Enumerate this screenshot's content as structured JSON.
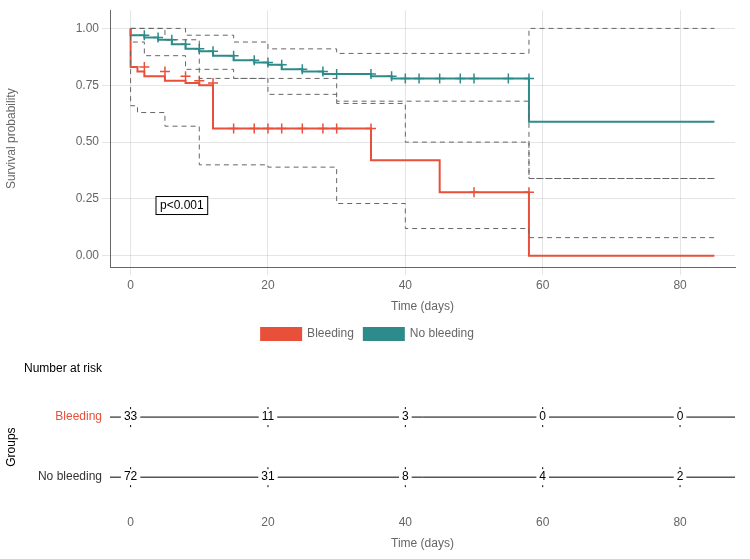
{
  "chart_data": {
    "type": "step",
    "xlabel": "Time (days)",
    "ylabel": "Survival probability",
    "xlim": [
      -3,
      88
    ],
    "xticks": [
      0,
      20,
      40,
      60,
      80
    ],
    "ylim": [
      -0.05,
      1.08
    ],
    "yticks": [
      {
        "value": 0,
        "label": "0.00"
      },
      0.25,
      {
        "value": 0.5,
        "label": "0.50"
      },
      0.75,
      {
        "value": 1,
        "label": "1.00"
      }
    ],
    "grid": true,
    "legend": "bottom",
    "series": [
      {
        "name": "Bleeding",
        "color": "#E8503A",
        "line_style": "solid",
        "marker": "+",
        "x": [
          0,
          1,
          2,
          5,
          8,
          10,
          12,
          15,
          18,
          20,
          22,
          25,
          28,
          30,
          35,
          40,
          45,
          50,
          55,
          58,
          60,
          85
        ],
        "values": [
          1.0,
          0.83,
          0.81,
          0.79,
          0.77,
          0.76,
          0.75,
          0.56,
          0.56,
          0.56,
          0.56,
          0.56,
          0.56,
          0.56,
          0.56,
          0.42,
          0.42,
          0.28,
          0.28,
          0.28,
          0.0,
          0.0
        ],
        "censors": {
          "x": [
            2,
            5,
            8,
            10,
            12,
            15,
            18,
            20,
            22,
            25,
            28,
            30,
            35,
            50,
            58
          ],
          "values": [
            0.83,
            0.81,
            0.79,
            0.77,
            0.76,
            0.56,
            0.56,
            0.56,
            0.56,
            0.56,
            0.56,
            0.56,
            0.56,
            0.28,
            0.28
          ]
        }
      },
      {
        "name": "No bleeding",
        "color": "#2E8B8B",
        "line_style": "solid",
        "marker": "+",
        "x": [
          0,
          2,
          4,
          6,
          8,
          10,
          12,
          15,
          18,
          20,
          22,
          25,
          28,
          30,
          35,
          38,
          40,
          42,
          45,
          48,
          50,
          55,
          58,
          60,
          85
        ],
        "values": [
          1.0,
          0.97,
          0.96,
          0.95,
          0.93,
          0.91,
          0.9,
          0.88,
          0.86,
          0.85,
          0.84,
          0.82,
          0.81,
          0.8,
          0.8,
          0.79,
          0.78,
          0.78,
          0.78,
          0.78,
          0.78,
          0.78,
          0.78,
          0.59,
          0.59
        ],
        "censors": {
          "x": [
            2,
            4,
            6,
            8,
            10,
            12,
            15,
            18,
            20,
            22,
            25,
            28,
            30,
            35,
            38,
            40,
            42,
            45,
            48,
            50,
            55,
            58
          ],
          "values": [
            0.97,
            0.96,
            0.95,
            0.93,
            0.91,
            0.9,
            0.88,
            0.86,
            0.85,
            0.84,
            0.82,
            0.81,
            0.8,
            0.8,
            0.79,
            0.78,
            0.78,
            0.78,
            0.78,
            0.78,
            0.78,
            0.78
          ]
        }
      },
      {
        "color": "#666666",
        "line_style": "dashed",
        "x": [
          0,
          2,
          8,
          15,
          20,
          30,
          40,
          55,
          58,
          60,
          85
        ],
        "values": [
          1.0,
          1.0,
          1.0,
          0.97,
          0.94,
          0.91,
          0.89,
          0.89,
          0.89,
          1.0,
          1.0
        ]
      },
      {
        "color": "#666666",
        "line_style": "dashed",
        "x": [
          0,
          2,
          8,
          15,
          20,
          30,
          40,
          55,
          58,
          60,
          85
        ],
        "values": [
          0.97,
          0.94,
          0.88,
          0.82,
          0.78,
          0.71,
          0.68,
          0.68,
          0.68,
          0.34,
          0.34
        ]
      },
      {
        "color": "#666666",
        "line_style": "dashed",
        "x": [
          0,
          1,
          5,
          10,
          15,
          20,
          30,
          40,
          50,
          58,
          60,
          85
        ],
        "values": [
          1.0,
          1.0,
          1.0,
          0.95,
          0.78,
          0.78,
          0.78,
          0.67,
          0.5,
          0.5,
          0.34,
          0.34
        ]
      },
      {
        "color": "#666666",
        "line_style": "dashed",
        "x": [
          0,
          1,
          5,
          10,
          15,
          20,
          30,
          40,
          50,
          58,
          60,
          85
        ],
        "values": [
          0.9,
          0.66,
          0.63,
          0.57,
          0.4,
          0.4,
          0.39,
          0.23,
          0.12,
          0.12,
          0.08,
          0.08
        ]
      }
    ],
    "annotations": [
      {
        "text": "p<0.001"
      }
    ],
    "risk_table": {
      "title": "Number at risk",
      "axis_label": "Groups",
      "x": [
        0,
        20,
        40,
        60,
        80
      ],
      "rows": [
        {
          "name": "Bleeding",
          "color": "#E8503A",
          "values": [
            33,
            11,
            3,
            0,
            0
          ]
        },
        {
          "name": "No bleeding",
          "color": "#333333",
          "values": [
            72,
            31,
            8,
            4,
            2
          ]
        }
      ]
    }
  }
}
